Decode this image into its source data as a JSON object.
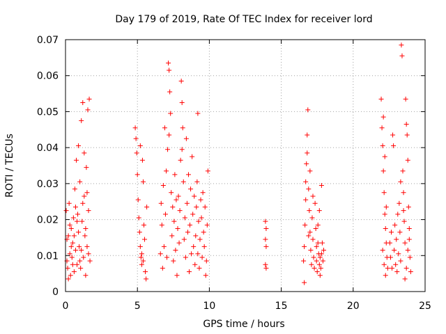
{
  "chart_data": {
    "type": "scatter",
    "title": "Day 179 of 2019, Rate Of TEC Index for receiver lord",
    "xlabel": "GPS time / hours",
    "ylabel": "ROTI / TECUs",
    "xlim": [
      0,
      25
    ],
    "ylim": [
      0,
      0.07
    ],
    "xticks": [
      0,
      5,
      10,
      15,
      20,
      25
    ],
    "xtick_labels": [
      "0",
      "5",
      "10",
      "15",
      "20",
      "25"
    ],
    "yticks": [
      0,
      0.01,
      0.02,
      0.03,
      0.04,
      0.05,
      0.06,
      0.07
    ],
    "ytick_labels": [
      "0",
      "0.01",
      "0.02",
      "0.03",
      "0.04",
      "0.05",
      "0.06",
      "0.07"
    ],
    "grid": true,
    "marker": "+",
    "color": "#ff0000",
    "points": [
      [
        0.05,
        0.0225
      ],
      [
        0.1,
        0.0085
      ],
      [
        0.15,
        0.0065
      ],
      [
        0.2,
        0.0155
      ],
      [
        0.25,
        0.0245
      ],
      [
        0.3,
        0.0105
      ],
      [
        0.35,
        0.0045
      ],
      [
        0.4,
        0.0175
      ],
      [
        0.45,
        0.0095
      ],
      [
        0.5,
        0.0135
      ],
      [
        0.55,
        0.0205
      ],
      [
        0.6,
        0.0055
      ],
      [
        0.65,
        0.0285
      ],
      [
        0.7,
        0.0115
      ],
      [
        0.75,
        0.0365
      ],
      [
        0.8,
        0.0075
      ],
      [
        0.85,
        0.0215
      ],
      [
        0.9,
        0.0405
      ],
      [
        0.95,
        0.0125
      ],
      [
        1.0,
        0.0305
      ],
      [
        1.05,
        0.0065
      ],
      [
        1.1,
        0.0475
      ],
      [
        1.15,
        0.0195
      ],
      [
        1.2,
        0.0525
      ],
      [
        1.25,
        0.0095
      ],
      [
        1.3,
        0.0265
      ],
      [
        1.35,
        0.0155
      ],
      [
        1.4,
        0.0045
      ],
      [
        1.45,
        0.0345
      ],
      [
        1.5,
        0.0125
      ],
      [
        1.55,
        0.0505
      ],
      [
        1.6,
        0.0225
      ],
      [
        1.65,
        0.0535
      ],
      [
        1.7,
        0.0085
      ],
      [
        0.1,
        0.0145
      ],
      [
        0.3,
        0.0185
      ],
      [
        0.5,
        0.0075
      ],
      [
        0.7,
        0.0235
      ],
      [
        0.9,
        0.0165
      ],
      [
        1.1,
        0.0115
      ],
      [
        1.3,
        0.0385
      ],
      [
        1.5,
        0.0275
      ],
      [
        0.2,
        0.0035
      ],
      [
        0.4,
        0.0125
      ],
      [
        0.6,
        0.0155
      ],
      [
        0.8,
        0.0195
      ],
      [
        1.0,
        0.0085
      ],
      [
        1.2,
        0.0245
      ],
      [
        1.4,
        0.0175
      ],
      [
        1.6,
        0.0105
      ],
      [
        4.85,
        0.0455
      ],
      [
        4.9,
        0.0425
      ],
      [
        4.95,
        0.0385
      ],
      [
        5.0,
        0.0325
      ],
      [
        5.05,
        0.0255
      ],
      [
        5.1,
        0.0205
      ],
      [
        5.15,
        0.0165
      ],
      [
        5.2,
        0.0125
      ],
      [
        5.25,
        0.0095
      ],
      [
        5.3,
        0.0075
      ],
      [
        5.35,
        0.0365
      ],
      [
        5.4,
        0.0305
      ],
      [
        5.45,
        0.0185
      ],
      [
        5.5,
        0.0145
      ],
      [
        5.55,
        0.0055
      ],
      [
        5.6,
        0.0035
      ],
      [
        5.65,
        0.0235
      ],
      [
        5.2,
        0.0405
      ],
      [
        5.3,
        0.0105
      ],
      [
        5.4,
        0.0085
      ],
      [
        6.6,
        0.0105
      ],
      [
        6.65,
        0.0245
      ],
      [
        6.7,
        0.0185
      ],
      [
        6.75,
        0.0065
      ],
      [
        6.8,
        0.0295
      ],
      [
        6.85,
        0.0125
      ],
      [
        6.9,
        0.0455
      ],
      [
        6.95,
        0.0215
      ],
      [
        7.0,
        0.0335
      ],
      [
        7.05,
        0.0095
      ],
      [
        7.1,
        0.0395
      ],
      [
        7.15,
        0.0635
      ],
      [
        7.2,
        0.0615
      ],
      [
        7.25,
        0.0555
      ],
      [
        7.3,
        0.0495
      ],
      [
        7.35,
        0.0275
      ],
      [
        7.4,
        0.0155
      ],
      [
        7.45,
        0.0235
      ],
      [
        7.5,
        0.0085
      ],
      [
        7.55,
        0.0195
      ],
      [
        7.6,
        0.0325
      ],
      [
        7.65,
        0.0115
      ],
      [
        7.7,
        0.0255
      ],
      [
        7.75,
        0.0045
      ],
      [
        7.8,
        0.0175
      ],
      [
        7.85,
        0.0265
      ],
      [
        7.9,
        0.0135
      ],
      [
        7.95,
        0.0225
      ],
      [
        8.0,
        0.0365
      ],
      [
        8.05,
        0.0585
      ],
      [
        8.1,
        0.0525
      ],
      [
        8.15,
        0.0455
      ],
      [
        8.2,
        0.0305
      ],
      [
        8.25,
        0.0145
      ],
      [
        8.3,
        0.0205
      ],
      [
        8.35,
        0.0095
      ],
      [
        8.4,
        0.0425
      ],
      [
        8.45,
        0.0245
      ],
      [
        8.5,
        0.0165
      ],
      [
        8.55,
        0.0325
      ],
      [
        8.6,
        0.0055
      ],
      [
        8.65,
        0.0185
      ],
      [
        8.7,
        0.0285
      ],
      [
        8.75,
        0.0105
      ],
      [
        8.8,
        0.0375
      ],
      [
        8.85,
        0.0215
      ],
      [
        8.9,
        0.0125
      ],
      [
        8.95,
        0.0265
      ],
      [
        9.0,
        0.0075
      ],
      [
        9.05,
        0.0155
      ],
      [
        9.1,
        0.0235
      ],
      [
        9.15,
        0.0305
      ],
      [
        9.2,
        0.0105
      ],
      [
        9.25,
        0.0195
      ],
      [
        9.3,
        0.0065
      ],
      [
        9.35,
        0.0145
      ],
      [
        9.4,
        0.0255
      ],
      [
        9.45,
        0.0205
      ],
      [
        9.5,
        0.0095
      ],
      [
        9.55,
        0.0275
      ],
      [
        9.6,
        0.0165
      ],
      [
        9.65,
        0.0125
      ],
      [
        9.7,
        0.0235
      ],
      [
        9.75,
        0.0045
      ],
      [
        9.8,
        0.0085
      ],
      [
        9.85,
        0.0185
      ],
      [
        9.2,
        0.0495
      ],
      [
        9.9,
        0.0335
      ],
      [
        7.2,
        0.0435
      ],
      [
        8.1,
        0.0395
      ],
      [
        13.9,
        0.0195
      ],
      [
        13.95,
        0.0175
      ],
      [
        13.9,
        0.0145
      ],
      [
        13.95,
        0.0125
      ],
      [
        13.9,
        0.0075
      ],
      [
        13.95,
        0.0065
      ],
      [
        16.55,
        0.0085
      ],
      [
        16.6,
        0.0125
      ],
      [
        16.65,
        0.0185
      ],
      [
        16.7,
        0.0255
      ],
      [
        16.75,
        0.0355
      ],
      [
        16.8,
        0.0435
      ],
      [
        16.85,
        0.0505
      ],
      [
        16.9,
        0.0285
      ],
      [
        16.95,
        0.0225
      ],
      [
        17.0,
        0.0165
      ],
      [
        17.05,
        0.0115
      ],
      [
        17.1,
        0.0075
      ],
      [
        17.15,
        0.0205
      ],
      [
        17.2,
        0.0145
      ],
      [
        17.25,
        0.0095
      ],
      [
        17.3,
        0.0065
      ],
      [
        17.35,
        0.0245
      ],
      [
        17.4,
        0.0175
      ],
      [
        17.45,
        0.0085
      ],
      [
        17.5,
        0.0055
      ],
      [
        17.55,
        0.0135
      ],
      [
        17.6,
        0.0105
      ],
      [
        17.65,
        0.0225
      ],
      [
        17.7,
        0.0045
      ],
      [
        16.6,
        0.0025
      ],
      [
        16.7,
        0.0305
      ],
      [
        16.8,
        0.0385
      ],
      [
        16.9,
        0.0155
      ],
      [
        17.0,
        0.0335
      ],
      [
        17.2,
        0.0265
      ],
      [
        17.45,
        0.0125
      ],
      [
        17.55,
        0.0185
      ],
      [
        17.65,
        0.0075
      ],
      [
        17.7,
        0.0095
      ],
      [
        17.75,
        0.0065
      ],
      [
        17.8,
        0.0105
      ],
      [
        17.85,
        0.0135
      ],
      [
        17.9,
        0.0085
      ],
      [
        17.95,
        0.0115
      ],
      [
        17.8,
        0.0295
      ],
      [
        21.95,
        0.0535
      ],
      [
        22.0,
        0.0455
      ],
      [
        22.05,
        0.0405
      ],
      [
        22.1,
        0.0335
      ],
      [
        22.15,
        0.0275
      ],
      [
        22.2,
        0.0215
      ],
      [
        22.25,
        0.0175
      ],
      [
        22.3,
        0.0135
      ],
      [
        22.35,
        0.0095
      ],
      [
        22.4,
        0.0065
      ],
      [
        22.1,
        0.0485
      ],
      [
        22.2,
        0.0375
      ],
      [
        22.3,
        0.0235
      ],
      [
        22.05,
        0.0115
      ],
      [
        22.15,
        0.0075
      ],
      [
        22.25,
        0.0045
      ],
      [
        22.55,
        0.0135
      ],
      [
        22.6,
        0.0095
      ],
      [
        22.65,
        0.0165
      ],
      [
        22.7,
        0.0065
      ],
      [
        22.75,
        0.0435
      ],
      [
        22.8,
        0.0405
      ],
      [
        22.85,
        0.0115
      ],
      [
        22.9,
        0.0185
      ],
      [
        22.95,
        0.0075
      ],
      [
        23.0,
        0.0145
      ],
      [
        23.05,
        0.0055
      ],
      [
        23.1,
        0.0215
      ],
      [
        23.15,
        0.0105
      ],
      [
        23.2,
        0.0245
      ],
      [
        23.25,
        0.0165
      ],
      [
        23.3,
        0.0085
      ],
      [
        23.35,
        0.0685
      ],
      [
        23.4,
        0.0655
      ],
      [
        23.45,
        0.0335
      ],
      [
        23.5,
        0.0275
      ],
      [
        23.55,
        0.0195
      ],
      [
        23.6,
        0.0135
      ],
      [
        23.65,
        0.0535
      ],
      [
        23.7,
        0.0465
      ],
      [
        23.75,
        0.0435
      ],
      [
        23.8,
        0.0365
      ],
      [
        23.85,
        0.0235
      ],
      [
        23.9,
        0.0175
      ],
      [
        23.95,
        0.0095
      ],
      [
        24.0,
        0.0055
      ],
      [
        23.3,
        0.0305
      ],
      [
        23.5,
        0.0225
      ],
      [
        23.7,
        0.0065
      ],
      [
        23.9,
        0.0145
      ],
      [
        23.6,
        0.0035
      ],
      [
        23.8,
        0.0115
      ]
    ]
  }
}
